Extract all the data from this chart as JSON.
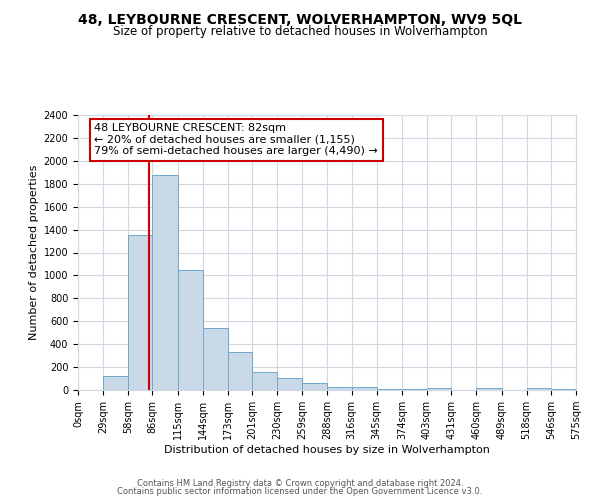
{
  "title": "48, LEYBOURNE CRESCENT, WOLVERHAMPTON, WV9 5QL",
  "subtitle": "Size of property relative to detached houses in Wolverhampton",
  "xlabel": "Distribution of detached houses by size in Wolverhampton",
  "ylabel": "Number of detached properties",
  "footer_line1": "Contains HM Land Registry data © Crown copyright and database right 2024.",
  "footer_line2": "Contains public sector information licensed under the Open Government Licence v3.0.",
  "bin_edges": [
    0,
    29,
    58,
    86,
    115,
    144,
    173,
    201,
    230,
    259,
    288,
    316,
    345,
    374,
    403,
    431,
    460,
    489,
    518,
    546,
    575
  ],
  "bin_counts": [
    0,
    125,
    1350,
    1880,
    1050,
    545,
    335,
    160,
    105,
    58,
    25,
    30,
    5,
    5,
    20,
    0,
    20,
    0,
    15,
    5
  ],
  "property_size": 82,
  "annotation_line1": "48 LEYBOURNE CRESCENT: 82sqm",
  "annotation_line2": "← 20% of detached houses are smaller (1,155)",
  "annotation_line3": "79% of semi-detached houses are larger (4,490) →",
  "bar_color": "#c9d9e8",
  "bar_edge_color": "#6fa8c9",
  "red_line_color": "#cc0000",
  "annotation_box_edge": "#cc0000",
  "background_color": "#ffffff",
  "grid_color": "#d0d8e4",
  "ylim": [
    0,
    2400
  ],
  "yticks": [
    0,
    200,
    400,
    600,
    800,
    1000,
    1200,
    1400,
    1600,
    1800,
    2000,
    2200,
    2400
  ],
  "title_fontsize": 10,
  "subtitle_fontsize": 8.5,
  "ylabel_fontsize": 8,
  "xlabel_fontsize": 8,
  "tick_fontsize": 7,
  "annotation_fontsize": 8,
  "footer_fontsize": 6
}
